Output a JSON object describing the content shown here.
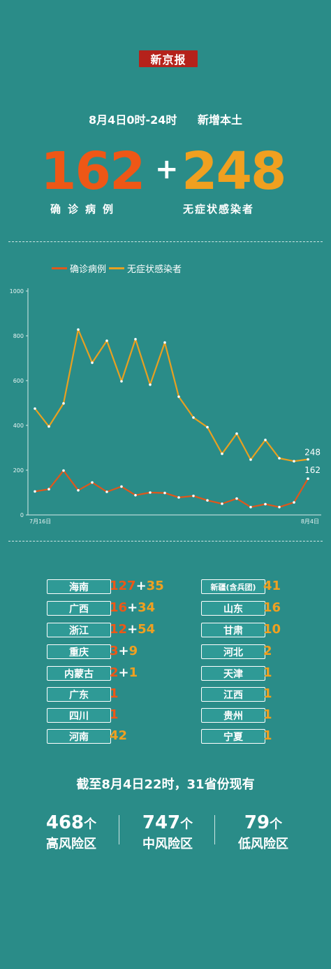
{
  "logo": "新京报",
  "header": {
    "date": "8月4日0时-24时",
    "subtitle": "新增本土"
  },
  "totals": {
    "confirmed": "162",
    "plus": "+",
    "asymptomatic": "248",
    "confirmed_label": "确诊病例",
    "asymptomatic_label": "无症状感染者"
  },
  "colors": {
    "confirmed": "#e0571b",
    "asymptomatic": "#e8a020",
    "background": "#2a8c88"
  },
  "chart_data": {
    "type": "line",
    "x_first_label": "7月16日",
    "x_last_label": "8月4日",
    "ylim": [
      0,
      1000
    ],
    "yticks": [
      "0",
      "200",
      "400",
      "600",
      "800",
      "1000"
    ],
    "grid": false,
    "legend": "top-left",
    "series": [
      {
        "name": "确诊病例",
        "values": [
          105,
          115,
          198,
          110,
          145,
          103,
          127,
          88,
          100,
          98,
          78,
          85,
          65,
          50,
          73,
          35,
          48,
          35,
          56,
          162
        ],
        "end_label": "162"
      },
      {
        "name": "无症状感染者",
        "values": [
          475,
          395,
          498,
          828,
          680,
          778,
          597,
          785,
          582,
          770,
          528,
          435,
          392,
          273,
          363,
          247,
          335,
          253,
          240,
          248
        ],
        "end_label": "248"
      }
    ]
  },
  "provinces_left": [
    {
      "name": "海南",
      "confirmed": "127",
      "asym": "35"
    },
    {
      "name": "广西",
      "confirmed": "16",
      "asym": "34"
    },
    {
      "name": "浙江",
      "confirmed": "12",
      "asym": "54"
    },
    {
      "name": "重庆",
      "confirmed": "3",
      "asym": "9"
    },
    {
      "name": "内蒙古",
      "confirmed": "2",
      "asym": "1"
    },
    {
      "name": "广东",
      "confirmed": "1",
      "asym": ""
    },
    {
      "name": "四川",
      "confirmed": "1",
      "asym": ""
    },
    {
      "name": "河南",
      "confirmed": "",
      "asym": "42"
    }
  ],
  "provinces_right": [
    {
      "name": "新疆(含兵团)",
      "value": "41"
    },
    {
      "name": "山东",
      "value": "16"
    },
    {
      "name": "甘肃",
      "value": "10"
    },
    {
      "name": "河北",
      "value": "2"
    },
    {
      "name": "天津",
      "value": "1"
    },
    {
      "name": "江西",
      "value": "1"
    },
    {
      "name": "贵州",
      "value": "1"
    },
    {
      "name": "宁夏",
      "value": "1"
    }
  ],
  "summary": "截至8月4日22时，31省份现有",
  "risk": [
    {
      "count": "468",
      "unit": "个",
      "label": "高风险区"
    },
    {
      "count": "747",
      "unit": "个",
      "label": "中风险区"
    },
    {
      "count": "79",
      "unit": "个",
      "label": "低风险区"
    }
  ]
}
